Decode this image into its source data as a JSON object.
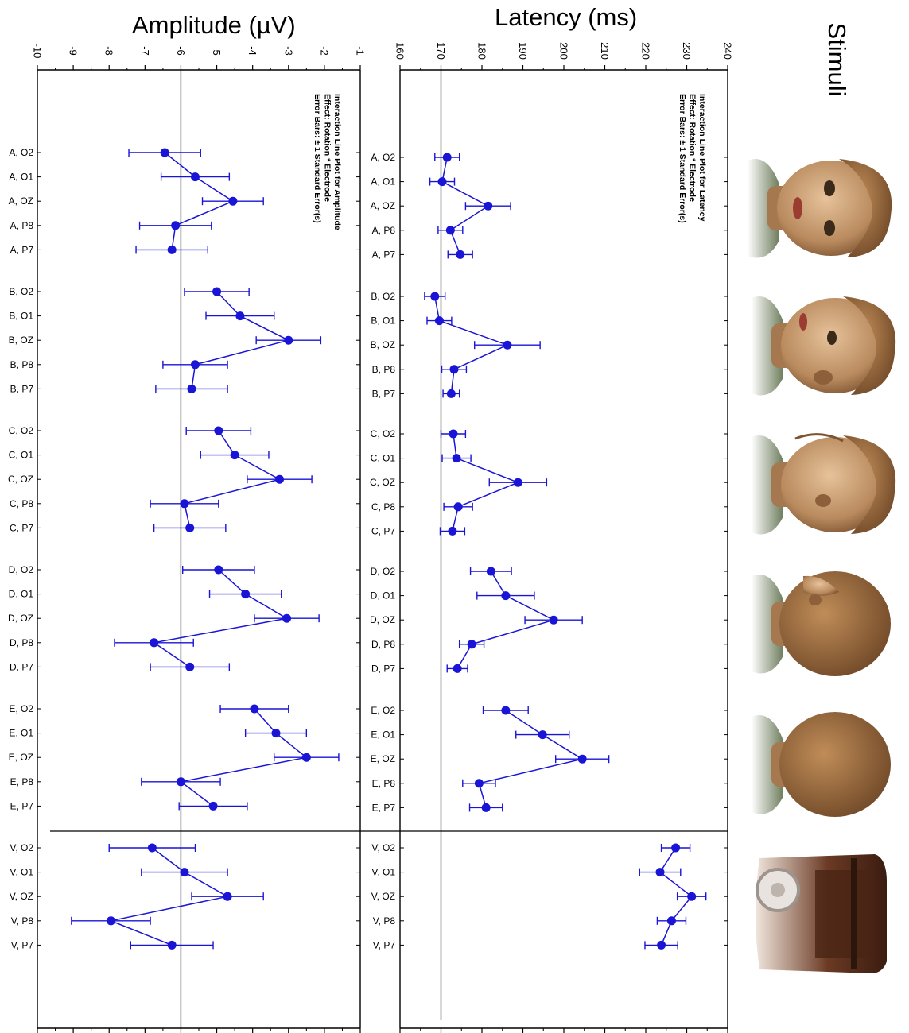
{
  "amplitude_title": "Amplitude (µV)",
  "latency_title": "Latency (ms)",
  "stimuli_title": "Stimuli",
  "chart_data": [
    {
      "type": "line",
      "title": "Interaction Line Plot for Amplitude",
      "notes": [
        "Interaction Line Plot for Amplitude",
        "Effect: Rotation * Electrode",
        "Error Bars: ± 1 Standard Error(s)"
      ],
      "xlabel": "Amplitude (µV)",
      "xlim": [
        -10,
        -1
      ],
      "ticks": [
        "-10",
        "-9",
        "-8",
        "-7",
        "-6",
        "-5",
        "-4",
        "-3",
        "-2",
        "-1"
      ],
      "reference_line": -6,
      "groups": [
        {
          "name": "A",
          "points": [
            {
              "label": "A, O2",
              "value": -6.45,
              "se": 1.0
            },
            {
              "label": "A, O1",
              "value": -5.6,
              "se": 0.95
            },
            {
              "label": "A, OZ",
              "value": -4.55,
              "se": 0.85
            },
            {
              "label": "A, P8",
              "value": -6.15,
              "se": 1.0
            },
            {
              "label": "A, P7",
              "value": -6.25,
              "se": 1.0
            }
          ]
        },
        {
          "name": "B",
          "points": [
            {
              "label": "B, O2",
              "value": -5.0,
              "se": 0.9
            },
            {
              "label": "B, O1",
              "value": -4.35,
              "se": 0.95
            },
            {
              "label": "B, OZ",
              "value": -3.0,
              "se": 0.9
            },
            {
              "label": "B, P8",
              "value": -5.6,
              "se": 0.9
            },
            {
              "label": "B, P7",
              "value": -5.7,
              "se": 1.0
            }
          ]
        },
        {
          "name": "C",
          "points": [
            {
              "label": "C, O2",
              "value": -4.95,
              "se": 0.9
            },
            {
              "label": "C, O1",
              "value": -4.5,
              "se": 0.95
            },
            {
              "label": "C, OZ",
              "value": -3.25,
              "se": 0.9
            },
            {
              "label": "C, P8",
              "value": -5.9,
              "se": 0.95
            },
            {
              "label": "C, P7",
              "value": -5.75,
              "se": 1.0
            }
          ]
        },
        {
          "name": "D",
          "points": [
            {
              "label": "D, O2",
              "value": -4.95,
              "se": 1.0
            },
            {
              "label": "D, O1",
              "value": -4.2,
              "se": 1.0
            },
            {
              "label": "D, OZ",
              "value": -3.05,
              "se": 0.9
            },
            {
              "label": "D, P8",
              "value": -6.75,
              "se": 1.1
            },
            {
              "label": "D, P7",
              "value": -5.75,
              "se": 1.1
            }
          ]
        },
        {
          "name": "E",
          "points": [
            {
              "label": "E, O2",
              "value": -3.95,
              "se": 0.95
            },
            {
              "label": "E, O1",
              "value": -3.35,
              "se": 0.85
            },
            {
              "label": "E, OZ",
              "value": -2.5,
              "se": 0.9
            },
            {
              "label": "E, P8",
              "value": -6.0,
              "se": 1.1
            },
            {
              "label": "E, P7",
              "value": -5.1,
              "se": 0.95
            }
          ]
        },
        {
          "name": "V",
          "points": [
            {
              "label": "V, O2",
              "value": -6.8,
              "se": 1.2
            },
            {
              "label": "V, O1",
              "value": -5.9,
              "se": 1.2
            },
            {
              "label": "V, OZ",
              "value": -4.7,
              "se": 1.0
            },
            {
              "label": "V, P8",
              "value": -7.95,
              "se": 1.1
            },
            {
              "label": "V, P7",
              "value": -6.25,
              "se": 1.15
            }
          ]
        }
      ]
    },
    {
      "type": "line",
      "title": "Interaction Line Plot for Latency",
      "notes": [
        "Interaction Line Plot for Latency",
        "Effect: Rotation * Electrode",
        "Error Bars: ± 1 Standard Error(s)"
      ],
      "xlabel": "Latency (ms)",
      "xlim": [
        160,
        240
      ],
      "ticks": [
        "160",
        "170",
        "180",
        "190",
        "200",
        "210",
        "220",
        "230",
        "240"
      ],
      "reference_line": 170,
      "groups": [
        {
          "name": "A",
          "points": [
            {
              "label": "A, O2",
              "value": 171.5,
              "se": 3.0
            },
            {
              "label": "A, O1",
              "value": 170.3,
              "se": 3.0
            },
            {
              "label": "A, OZ",
              "value": 181.5,
              "se": 5.5
            },
            {
              "label": "A, P8",
              "value": 172.3,
              "se": 3.0
            },
            {
              "label": "A, P7",
              "value": 174.7,
              "se": 3.0
            }
          ]
        },
        {
          "name": "B",
          "points": [
            {
              "label": "B, O2",
              "value": 168.5,
              "se": 2.5
            },
            {
              "label": "B, O1",
              "value": 169.6,
              "se": 3.0
            },
            {
              "label": "B, OZ",
              "value": 186.2,
              "se": 8.0
            },
            {
              "label": "B, P8",
              "value": 173.2,
              "se": 3.0
            },
            {
              "label": "B, P7",
              "value": 172.5,
              "se": 2.0
            }
          ]
        },
        {
          "name": "C",
          "points": [
            {
              "label": "C, O2",
              "value": 173.0,
              "se": 3.0
            },
            {
              "label": "C, O1",
              "value": 173.8,
              "se": 3.5
            },
            {
              "label": "C, OZ",
              "value": 188.8,
              "se": 7.0
            },
            {
              "label": "C, P8",
              "value": 174.2,
              "se": 3.5
            },
            {
              "label": "C, P7",
              "value": 172.8,
              "se": 3.0
            }
          ]
        },
        {
          "name": "D",
          "points": [
            {
              "label": "D, O2",
              "value": 182.2,
              "se": 5.0
            },
            {
              "label": "D, O1",
              "value": 185.8,
              "se": 7.0
            },
            {
              "label": "D, OZ",
              "value": 197.5,
              "se": 7.0
            },
            {
              "label": "D, P8",
              "value": 177.5,
              "se": 3.0
            },
            {
              "label": "D, P7",
              "value": 174.0,
              "se": 2.5
            }
          ]
        },
        {
          "name": "E",
          "points": [
            {
              "label": "E, O2",
              "value": 185.8,
              "se": 5.5
            },
            {
              "label": "E, O1",
              "value": 194.8,
              "se": 6.5
            },
            {
              "label": "E, OZ",
              "value": 204.5,
              "se": 6.5
            },
            {
              "label": "E, P8",
              "value": 179.3,
              "se": 4.0
            },
            {
              "label": "E, P7",
              "value": 181.0,
              "se": 4.0
            }
          ]
        },
        {
          "name": "V",
          "points": [
            {
              "label": "V, O2",
              "value": 227.3,
              "se": 3.5
            },
            {
              "label": "V, O1",
              "value": 223.5,
              "se": 5.0
            },
            {
              "label": "V, OZ",
              "value": 231.2,
              "se": 3.5
            },
            {
              "label": "V, P8",
              "value": 226.3,
              "se": 3.5
            },
            {
              "label": "V, P7",
              "value": 223.8,
              "se": 4.0
            }
          ]
        }
      ]
    }
  ],
  "stimuli": [
    "A",
    "B",
    "C",
    "D",
    "E",
    "V"
  ],
  "colors": {
    "series": "#1a14d6",
    "axis": "#000000",
    "skin": "#b98a5e",
    "hair": "#9a6a3a",
    "shirt": "#6d7d58"
  }
}
